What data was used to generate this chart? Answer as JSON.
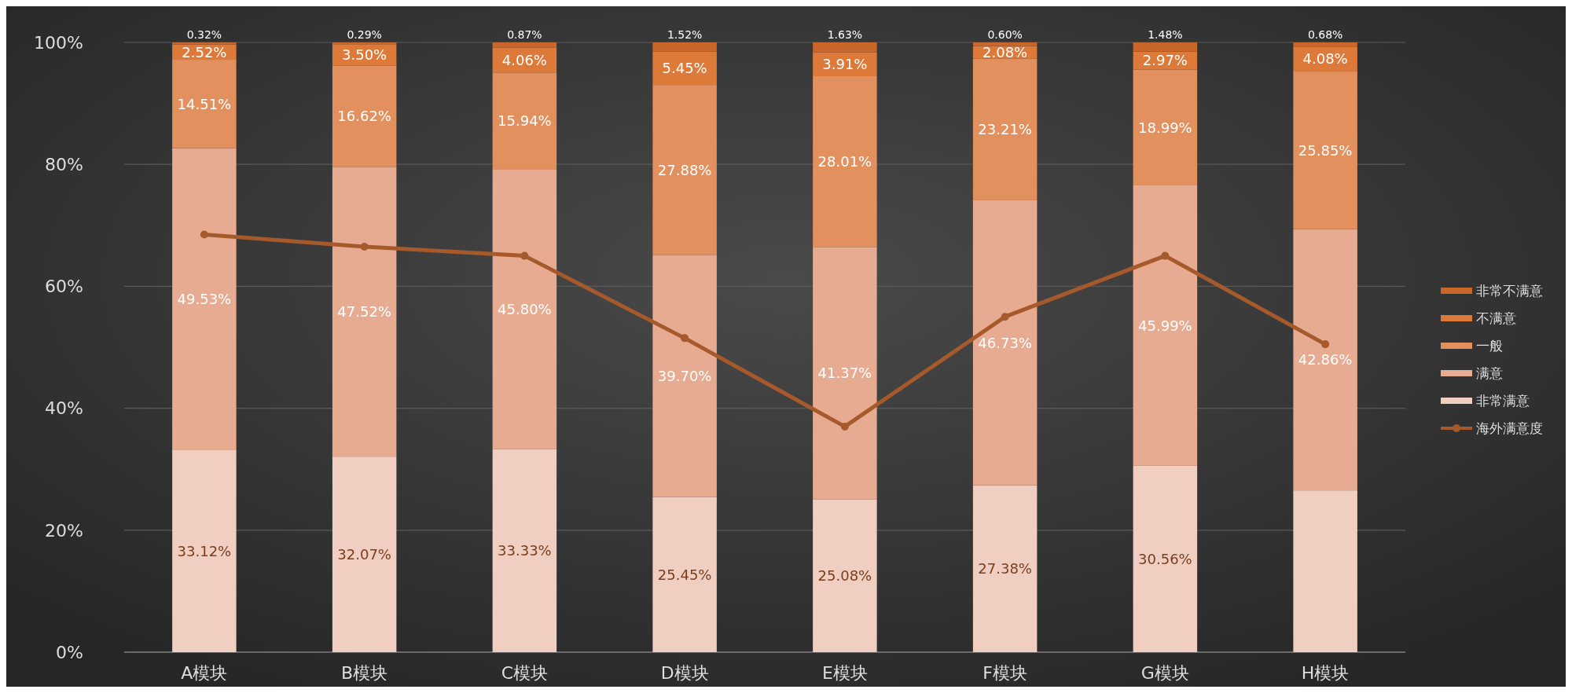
{
  "chart_data": {
    "type": "bar",
    "stacked": true,
    "categories": [
      "A模块",
      "B模块",
      "C模块",
      "D模块",
      "E模块",
      "F模块",
      "G模块",
      "H模块"
    ],
    "ylim": [
      0,
      100
    ],
    "yticks": [
      {
        "value": 0,
        "label": "0%"
      },
      {
        "value": 20,
        "label": "20%"
      },
      {
        "value": 40,
        "label": "40%"
      },
      {
        "value": 60,
        "label": "60%"
      },
      {
        "value": 80,
        "label": "80%"
      },
      {
        "value": 100,
        "label": "100%"
      }
    ],
    "grid": "y",
    "legend": "right",
    "marker": "circle",
    "series": [
      {
        "name": "非常满意",
        "color": "#f0cfc2",
        "values": [
          33.12,
          32.07,
          33.33,
          25.45,
          25.08,
          27.38,
          30.56,
          26.53
        ],
        "value_labels": [
          "33.12%",
          "32.07%",
          "33.33%",
          "25.45%",
          "25.08%",
          "27.38%",
          "30.56%",
          null
        ]
      },
      {
        "name": "满意",
        "color": "#e6ab90",
        "values": [
          49.53,
          47.52,
          45.8,
          39.7,
          41.37,
          46.73,
          45.99,
          42.86
        ],
        "value_labels": [
          "49.53%",
          "47.52%",
          "45.80%",
          "39.70%",
          "41.37%",
          "46.73%",
          "45.99%",
          "42.86%"
        ]
      },
      {
        "name": "一般",
        "color": "#e3905f",
        "values": [
          14.51,
          16.62,
          15.94,
          27.88,
          28.01,
          23.21,
          18.99,
          25.85
        ],
        "value_labels": [
          "14.51%",
          "16.62%",
          "15.94%",
          "27.88%",
          "28.01%",
          "23.21%",
          "18.99%",
          "25.85%"
        ]
      },
      {
        "name": "不满意",
        "color": "#dd7a3a",
        "values": [
          2.52,
          3.5,
          4.06,
          5.45,
          3.91,
          2.08,
          2.97,
          4.08
        ],
        "value_labels": [
          "2.52%",
          "3.50%",
          "4.06%",
          "5.45%",
          "3.91%",
          "2.08%",
          "2.97%",
          "4.08%"
        ]
      },
      {
        "name": "非常不满意",
        "color": "#c9662a",
        "values": [
          0.32,
          0.29,
          0.87,
          1.52,
          1.63,
          0.6,
          1.48,
          0.68
        ],
        "value_labels": [
          "0.32%",
          "0.29%",
          "0.87%",
          "1.52%",
          "1.63%",
          "0.60%",
          "1.48%",
          "0.68%"
        ]
      },
      {
        "name": "海外满意度",
        "type": "line",
        "color": "#a65a2c",
        "values": [
          68.5,
          66.5,
          65,
          51.5,
          37,
          55,
          65,
          50.5
        ]
      }
    ]
  }
}
